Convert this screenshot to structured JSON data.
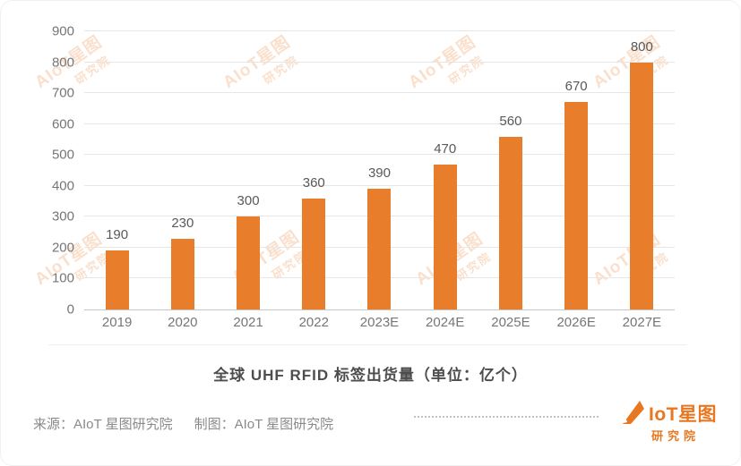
{
  "page": {
    "source_label": "来源：AIoT 星图研究院",
    "credit_label": "制图：AIoT 星图研究院"
  },
  "watermark": {
    "line1": "AIoT星图",
    "line2": "研究院"
  },
  "logo": {
    "brand": "IoT星图",
    "sub": "研究院",
    "color": "#e87722"
  },
  "colors": {
    "bar": "#e87e2b",
    "gridline": "#e6e6e6",
    "axis_text": "#767676",
    "value_label": "#595959",
    "accent": "#e87722"
  },
  "chart_data": {
    "type": "bar",
    "title": "全球 UHF RFID 标签出货量（单位：亿个）",
    "categories": [
      "2019",
      "2020",
      "2021",
      "2022",
      "2023E",
      "2024E",
      "2025E",
      "2026E",
      "2027E"
    ],
    "values": [
      190,
      230,
      300,
      360,
      390,
      470,
      560,
      670,
      800
    ],
    "xlabel": "",
    "ylabel": "",
    "ylim": [
      0,
      900
    ],
    "ytick_step": 100,
    "grid": true,
    "value_labels": true,
    "legend": "none",
    "bar_color": "#e87e2b"
  }
}
